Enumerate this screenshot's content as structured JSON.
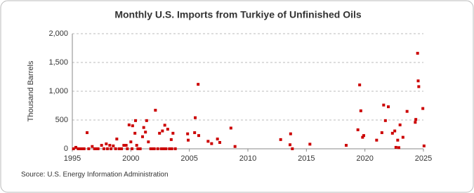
{
  "chart_data": {
    "type": "scatter",
    "title": "Monthly U.S. Imports from Turkiye of Unfinished Oils",
    "y_label": "Thousand Barrels",
    "source": "Source: U.S. Energy Information Administration",
    "color": "#cc0000",
    "grid": true,
    "xlim": [
      1995,
      2025
    ],
    "xticks": [
      1995,
      2000,
      2005,
      2010,
      2015,
      2020,
      2025
    ],
    "ylim": [
      0,
      2000
    ],
    "yticks": [
      0,
      500,
      {
        "value": 1000,
        "label": "1,000"
      },
      {
        "value": 1500,
        "label": "1,500"
      },
      {
        "value": 2000,
        "label": "2,000"
      }
    ],
    "x": [
      1995.1,
      1995.3,
      1995.5,
      1995.7,
      1995.9,
      1996.0,
      1996.26,
      1996.4,
      1996.7,
      1996.9,
      1997.0,
      1997.2,
      1997.5,
      1997.7,
      1997.9,
      1998.0,
      1998.2,
      1998.3,
      1998.5,
      1998.7,
      1998.8,
      1999.0,
      1999.2,
      1999.4,
      1999.6,
      1999.7,
      1999.85,
      2000.0,
      2000.1,
      2000.15,
      2000.35,
      2000.4,
      2000.5,
      2000.6,
      2000.8,
      2001.0,
      2001.1,
      2001.25,
      2001.35,
      2001.5,
      2001.7,
      2001.9,
      2002.0,
      2002.1,
      2002.3,
      2002.45,
      2002.6,
      2002.7,
      2002.8,
      2002.9,
      2003.0,
      2003.15,
      2003.3,
      2003.45,
      2003.5,
      2003.6,
      2003.8,
      2004.85,
      2004.9,
      2005.45,
      2005.5,
      2005.75,
      2005.8,
      2006.6,
      2006.9,
      2007.4,
      2007.6,
      2008.55,
      2008.9,
      2012.8,
      2013.6,
      2013.65,
      2013.8,
      2015.3,
      2018.4,
      2019.4,
      2019.55,
      2019.65,
      2019.8,
      2019.9,
      2021.0,
      2021.45,
      2021.6,
      2021.75,
      2022.0,
      2022.35,
      2022.55,
      2022.65,
      2022.8,
      2022.9,
      2023.0,
      2023.25,
      2023.6,
      2024.3,
      2024.35,
      2024.5,
      2024.55,
      2024.6,
      2024.95,
      2025.05
    ],
    "values": [
      0,
      25,
      0,
      0,
      0,
      0,
      280,
      0,
      40,
      0,
      0,
      0,
      60,
      0,
      85,
      0,
      60,
      0,
      50,
      0,
      170,
      0,
      0,
      60,
      60,
      0,
      415,
      120,
      0,
      400,
      270,
      490,
      60,
      0,
      0,
      210,
      370,
      290,
      490,
      120,
      0,
      0,
      0,
      670,
      0,
      270,
      0,
      310,
      0,
      410,
      0,
      340,
      0,
      160,
      0,
      270,
      0,
      260,
      150,
      280,
      540,
      1120,
      230,
      130,
      90,
      170,
      110,
      360,
      40,
      160,
      70,
      260,
      0,
      80,
      60,
      330,
      1110,
      660,
      200,
      230,
      150,
      280,
      760,
      490,
      730,
      270,
      310,
      25,
      150,
      20,
      415,
      200,
      650,
      460,
      510,
      1660,
      1180,
      1080,
      700,
      50
    ]
  }
}
